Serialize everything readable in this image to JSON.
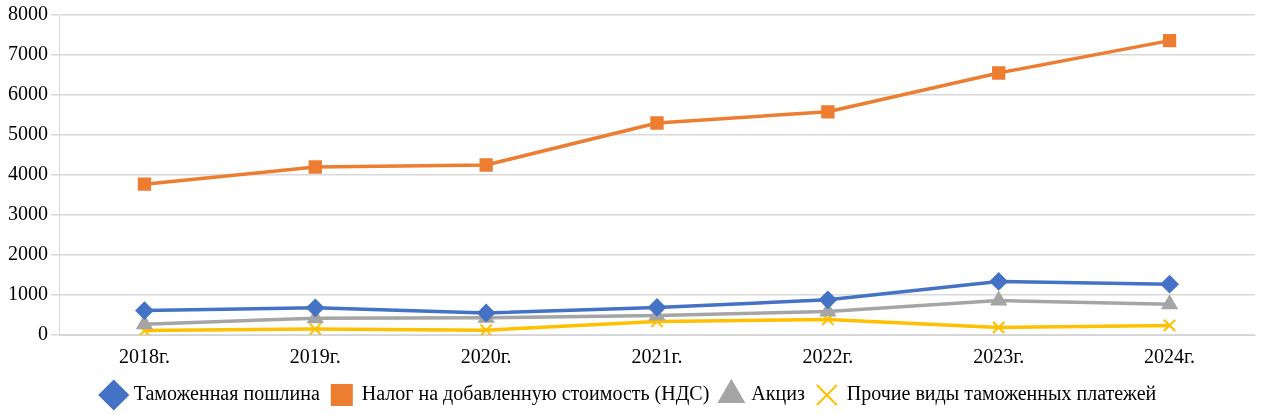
{
  "chart_data": {
    "type": "line",
    "categories": [
      "2018г.",
      "2019г.",
      "2020г.",
      "2021г.",
      "2022г.",
      "2023г.",
      "2024г."
    ],
    "series": [
      {
        "name": "Таможенная пошлина",
        "color": "#4472c4",
        "marker": "diamond",
        "values": [
          610,
          680,
          550,
          690,
          880,
          1340,
          1270
        ]
      },
      {
        "name": "Налог на добавленную стоимость (НДС)",
        "color": "#ed7d31",
        "marker": "square",
        "values": [
          3770,
          4200,
          4250,
          5300,
          5580,
          6550,
          7360
        ]
      },
      {
        "name": "Акциз",
        "color": "#a5a5a5",
        "marker": "triangle",
        "values": [
          270,
          420,
          430,
          490,
          590,
          860,
          770
        ]
      },
      {
        "name": "Прочие виды таможенных платежей",
        "color": "#ffc000",
        "marker": "cross",
        "values": [
          110,
          150,
          120,
          340,
          390,
          190,
          240
        ]
      }
    ],
    "ylim": [
      0,
      8000
    ],
    "yticks": [
      0,
      1000,
      2000,
      3000,
      4000,
      5000,
      6000,
      7000,
      8000
    ],
    "grid": "y",
    "legend": "bottom"
  }
}
